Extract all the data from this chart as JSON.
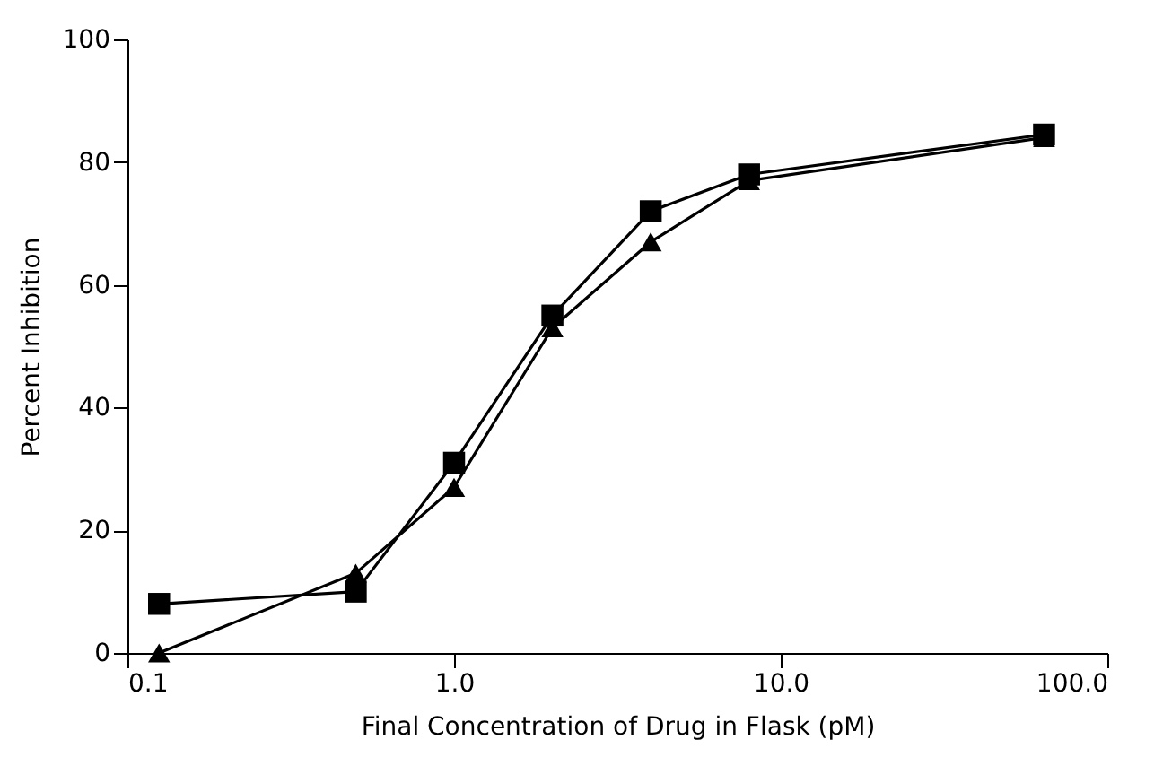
{
  "chart_data": {
    "type": "line",
    "xlabel": "Final Concentration of Drug in Flask (pM)",
    "ylabel": "Percent Inhibition",
    "log": "x",
    "x": [
      0.125,
      0.5,
      1,
      2,
      4,
      8,
      64
    ],
    "series": [
      {
        "color": "#000000",
        "marker": "square",
        "values": [
          8,
          10,
          31,
          55,
          72,
          78,
          84.5
        ]
      },
      {
        "color": "#000000",
        "marker": "triangle",
        "values": [
          0,
          13,
          27,
          53,
          67,
          77,
          84
        ]
      }
    ],
    "xlim": [
      0.1,
      100
    ],
    "xticks": [
      {
        "value": 0.1,
        "label": "0.1"
      },
      {
        "value": 1,
        "label": "1.0"
      },
      {
        "value": 10,
        "label": "10.0"
      },
      {
        "value": 100,
        "label": "100.0"
      }
    ],
    "ylim": [
      0,
      100
    ],
    "yticks": [
      0,
      20,
      40,
      60,
      80,
      100
    ],
    "grid": false,
    "line_style": "solid"
  }
}
